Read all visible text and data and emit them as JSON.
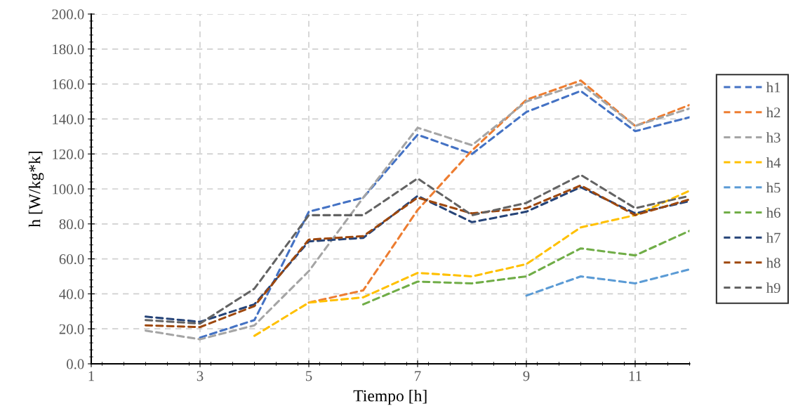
{
  "chart_data": {
    "type": "line",
    "xlabel": "Tiempo [h]",
    "ylabel": "h [W/kg*k]",
    "xlim": [
      1,
      12
    ],
    "xticks": [
      1,
      3,
      5,
      7,
      9,
      11
    ],
    "ylim": [
      0,
      200
    ],
    "yticks": [
      {
        "value": 0,
        "label": "0.0"
      },
      {
        "value": 20,
        "label": "20.0"
      },
      {
        "value": 40,
        "label": "40.0"
      },
      {
        "value": 60,
        "label": "60.0"
      },
      {
        "value": 80,
        "label": "80.0"
      },
      {
        "value": 100,
        "label": "100.0"
      },
      {
        "value": 120,
        "label": "120.0"
      },
      {
        "value": 140,
        "label": "140.0"
      },
      {
        "value": 160,
        "label": "160.0"
      },
      {
        "value": 180,
        "label": "180.0"
      },
      {
        "value": 200,
        "label": "200.0"
      }
    ],
    "grid": true,
    "legend": "right",
    "line_style": "dashed",
    "marker": "none",
    "series": [
      {
        "name": "h1",
        "color": "#4472c4",
        "x": [
          3,
          4,
          5,
          6,
          7,
          8,
          9,
          10,
          11,
          12
        ],
        "values": [
          15,
          25,
          87,
          95,
          131,
          120,
          144,
          156,
          133,
          141
        ]
      },
      {
        "name": "h2",
        "color": "#ed7d31",
        "x": [
          5,
          6,
          7,
          8,
          9,
          10,
          11,
          12
        ],
        "values": [
          35,
          42,
          88,
          122,
          151,
          162,
          136,
          148
        ]
      },
      {
        "name": "h3",
        "color": "#a5a5a5",
        "x": [
          2,
          3,
          4,
          5,
          6,
          7,
          8,
          9,
          10,
          11,
          12
        ],
        "values": [
          19,
          14,
          22,
          53,
          95,
          135,
          125,
          150,
          160,
          136,
          146
        ]
      },
      {
        "name": "h4",
        "color": "#ffc000",
        "x": [
          4,
          5,
          6,
          7,
          8,
          9,
          10,
          11,
          12
        ],
        "values": [
          16,
          35,
          38,
          52,
          50,
          57,
          78,
          85,
          99
        ]
      },
      {
        "name": "h5",
        "color": "#5b9bd5",
        "x": [
          9,
          10,
          11,
          12
        ],
        "values": [
          39,
          50,
          46,
          54
        ]
      },
      {
        "name": "h6",
        "color": "#70ad47",
        "x": [
          6,
          7,
          8,
          9,
          10,
          11,
          12
        ],
        "values": [
          34,
          47,
          46,
          50,
          66,
          62,
          76
        ]
      },
      {
        "name": "h7",
        "color": "#264478",
        "x": [
          2,
          3,
          4,
          5,
          6,
          7,
          8,
          9,
          10,
          11,
          12
        ],
        "values": [
          27,
          24,
          34,
          70,
          72,
          96,
          81,
          87,
          101,
          86,
          93
        ]
      },
      {
        "name": "h8",
        "color": "#9e480e",
        "x": [
          2,
          3,
          4,
          5,
          6,
          7,
          8,
          9,
          10,
          11,
          12
        ],
        "values": [
          22,
          21,
          33,
          71,
          73,
          95,
          86,
          89,
          102,
          85,
          94
        ]
      },
      {
        "name": "h9",
        "color": "#636363",
        "x": [
          2,
          3,
          4,
          5,
          6,
          7,
          8,
          9,
          10,
          11,
          12
        ],
        "values": [
          25,
          23,
          43,
          85,
          85,
          106,
          85,
          92,
          108,
          89,
          96
        ]
      }
    ]
  }
}
